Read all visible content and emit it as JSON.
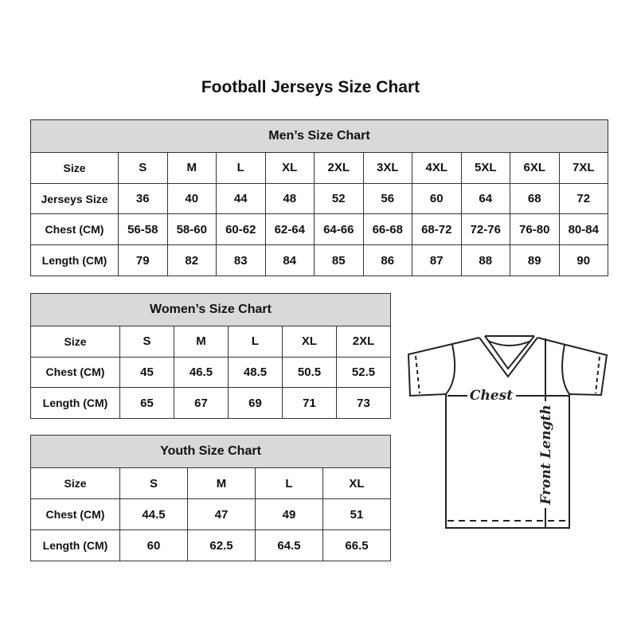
{
  "title": "Football Jerseys Size Chart",
  "men": {
    "heading": "Men’s Size Chart",
    "rows": [
      [
        "Size",
        "S",
        "M",
        "L",
        "XL",
        "2XL",
        "3XL",
        "4XL",
        "5XL",
        "6XL",
        "7XL"
      ],
      [
        "Jerseys Size",
        "36",
        "40",
        "44",
        "48",
        "52",
        "56",
        "60",
        "64",
        "68",
        "72"
      ],
      [
        "Chest (CM)",
        "56-58",
        "58-60",
        "60-62",
        "62-64",
        "64-66",
        "66-68",
        "68-72",
        "72-76",
        "76-80",
        "80-84"
      ],
      [
        "Length (CM)",
        "79",
        "82",
        "83",
        "84",
        "85",
        "86",
        "87",
        "88",
        "89",
        "90"
      ]
    ]
  },
  "women": {
    "heading": "Women’s Size Chart",
    "rows": [
      [
        "Size",
        "S",
        "M",
        "L",
        "XL",
        "2XL"
      ],
      [
        "Chest (CM)",
        "45",
        "46.5",
        "48.5",
        "50.5",
        "52.5"
      ],
      [
        "Length (CM)",
        "65",
        "67",
        "69",
        "71",
        "73"
      ]
    ]
  },
  "youth": {
    "heading": "Youth Size Chart",
    "rows": [
      [
        "Size",
        "S",
        "M",
        "L",
        "XL"
      ],
      [
        "Chest (CM)",
        "44.5",
        "47",
        "49",
        "51"
      ],
      [
        "Length (CM)",
        "60",
        "62.5",
        "64.5",
        "66.5"
      ]
    ]
  },
  "diagram": {
    "chest_label": "Chest",
    "length_label": "Front Length"
  },
  "colors": {
    "header_fill": "#d9d9d9",
    "border": "#333333"
  }
}
